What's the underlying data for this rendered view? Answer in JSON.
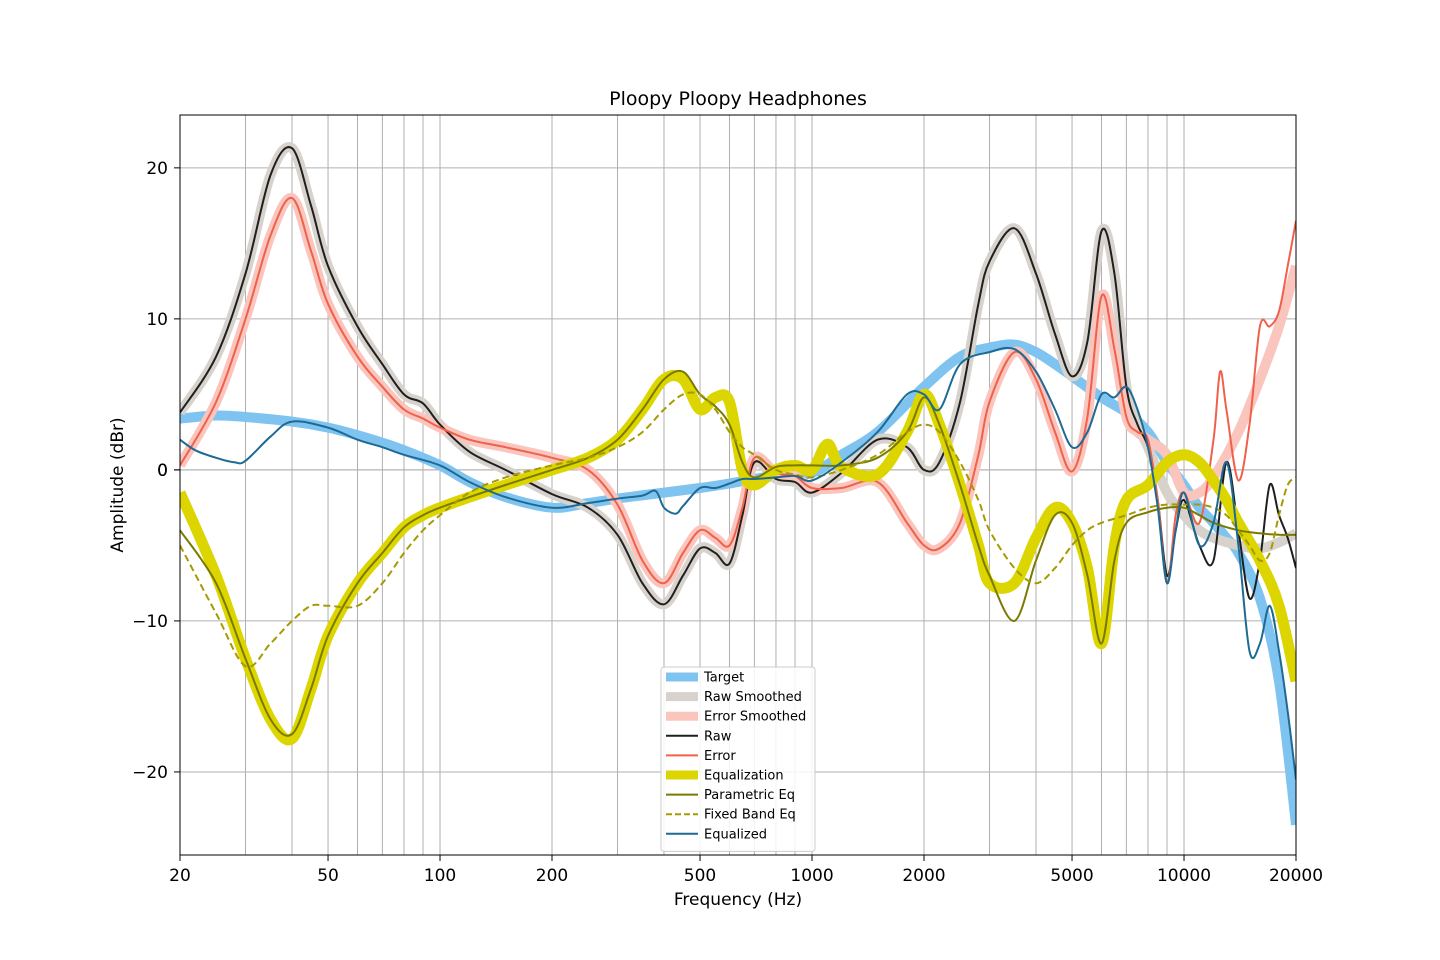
{
  "chart_data": {
    "type": "line",
    "title": "Ploopy Ploopy Headphones",
    "xlabel": "Frequency (Hz)",
    "ylabel": "Amplitude (dBr)",
    "x_scale": "log",
    "xlim": [
      20,
      20000
    ],
    "ylim": [
      -25.5,
      23.5
    ],
    "grid": true,
    "legend_position": "lower center",
    "x_tick_labels": [
      "20",
      "50",
      "100",
      "200",
      "500",
      "1000",
      "2000",
      "5000",
      "10000",
      "20000"
    ],
    "y_tick_labels": [
      "20",
      "10",
      "0",
      "−10",
      "−20"
    ],
    "series": [
      {
        "name": "Target",
        "color": "#7fc4f0",
        "style": "thick",
        "x": [
          20,
          25,
          30,
          40,
          50,
          60,
          70,
          80,
          100,
          120,
          150,
          200,
          250,
          300,
          400,
          500,
          600,
          700,
          800,
          1000,
          1200,
          1500,
          2000,
          2500,
          3000,
          3500,
          4000,
          4500,
          5000,
          6000,
          7000,
          8000,
          9000,
          10000,
          11000,
          12000,
          13000,
          14000,
          16000,
          18000,
          20000
        ],
        "y": [
          3.4,
          3.6,
          3.5,
          3.2,
          2.8,
          2.3,
          1.8,
          1.3,
          0.3,
          -0.8,
          -1.8,
          -2.5,
          -2.2,
          -1.9,
          -1.5,
          -1.2,
          -0.9,
          -0.6,
          -0.4,
          -0.2,
          1.0,
          2.5,
          5.5,
          7.5,
          8.1,
          8.3,
          7.8,
          7.0,
          6.2,
          4.8,
          3.8,
          2.5,
          0.5,
          -1.0,
          -2.5,
          -3.5,
          -4.5,
          -5.5,
          -8.5,
          -14.0,
          -23.5
        ]
      },
      {
        "name": "Raw Smoothed",
        "color": "#d7d2cc",
        "style": "thick",
        "x": [
          20,
          25,
          30,
          35,
          40,
          45,
          50,
          60,
          70,
          80,
          90,
          100,
          120,
          150,
          200,
          250,
          300,
          350,
          400,
          450,
          500,
          550,
          600,
          650,
          700,
          800,
          900,
          1000,
          1200,
          1500,
          1800,
          2000,
          2200,
          2500,
          2800,
          3000,
          3500,
          4000,
          4500,
          5000,
          5500,
          6000,
          6500,
          7000,
          7500,
          8000,
          9000,
          10000,
          11000,
          12000,
          14000,
          16000,
          18000,
          20000
        ],
        "y": [
          3.8,
          7.5,
          13.0,
          19.5,
          21.3,
          17.5,
          13.5,
          9.5,
          7.0,
          5.0,
          4.4,
          3.0,
          1.2,
          0.0,
          -1.6,
          -2.5,
          -4.3,
          -7.5,
          -8.9,
          -7.0,
          -5.2,
          -5.5,
          -6.2,
          -3.0,
          0.5,
          -0.6,
          -0.8,
          -1.5,
          -0.2,
          2.0,
          1.5,
          0.0,
          0.5,
          4.5,
          11.0,
          13.8,
          16.0,
          13.0,
          9.0,
          6.2,
          8.5,
          15.8,
          13.0,
          5.5,
          3.0,
          1.5,
          -1.5,
          -3.0,
          -4.0,
          -4.5,
          -5.0,
          -5.2,
          -4.8,
          -4.2
        ]
      },
      {
        "name": "Error Smoothed",
        "color": "#f9c5bd",
        "style": "thick",
        "x": [
          20,
          25,
          30,
          35,
          40,
          45,
          50,
          60,
          70,
          80,
          90,
          100,
          120,
          150,
          200,
          250,
          300,
          350,
          400,
          450,
          500,
          550,
          600,
          650,
          700,
          800,
          900,
          1000,
          1200,
          1500,
          1800,
          2000,
          2200,
          2500,
          2800,
          3000,
          3500,
          4000,
          4500,
          5000,
          5500,
          6000,
          6500,
          7000,
          7500,
          8000,
          9000,
          10000,
          11000,
          12000,
          14000,
          16000,
          18000,
          20000
        ],
        "y": [
          0.3,
          4.5,
          10.0,
          15.5,
          18.0,
          14.5,
          11.0,
          7.5,
          5.5,
          4.0,
          3.4,
          2.8,
          2.0,
          1.5,
          0.8,
          0.0,
          -2.3,
          -6.0,
          -7.5,
          -5.5,
          -4.0,
          -4.5,
          -5.0,
          -2.5,
          0.8,
          -0.2,
          -0.4,
          -1.2,
          -1.2,
          -0.8,
          -3.5,
          -5.0,
          -5.2,
          -3.5,
          1.0,
          4.5,
          7.8,
          6.0,
          2.5,
          -0.1,
          3.5,
          11.5,
          8.0,
          3.5,
          2.5,
          2.0,
          1.0,
          -1.5,
          -1.5,
          -0.5,
          2.5,
          6.0,
          9.5,
          13.5
        ]
      },
      {
        "name": "Raw",
        "color": "#1f1f1f",
        "style": "thin",
        "x": [
          20,
          25,
          30,
          35,
          40,
          45,
          50,
          60,
          70,
          80,
          90,
          100,
          120,
          150,
          200,
          250,
          300,
          350,
          400,
          450,
          500,
          550,
          600,
          650,
          700,
          800,
          900,
          1000,
          1200,
          1500,
          1800,
          2000,
          2200,
          2500,
          2800,
          3000,
          3500,
          4000,
          4500,
          5000,
          5500,
          6000,
          6500,
          7000,
          7500,
          8000,
          8500,
          9000,
          9500,
          10000,
          11000,
          12000,
          13000,
          14000,
          15000,
          16000,
          17000,
          18000,
          19000,
          20000
        ],
        "y": [
          3.8,
          7.5,
          13.0,
          19.5,
          21.3,
          17.5,
          13.5,
          9.5,
          7.0,
          5.0,
          4.4,
          3.0,
          1.2,
          0.0,
          -1.6,
          -2.5,
          -4.3,
          -7.5,
          -8.9,
          -7.0,
          -5.2,
          -5.5,
          -6.2,
          -3.0,
          0.5,
          -0.6,
          -0.8,
          -1.5,
          -0.2,
          2.0,
          1.5,
          0.0,
          0.5,
          4.5,
          11.0,
          13.8,
          16.0,
          13.0,
          9.0,
          6.2,
          8.5,
          15.8,
          13.0,
          5.5,
          3.0,
          1.5,
          -2.0,
          -7.0,
          -4.0,
          -2.0,
          -5.0,
          -6.0,
          0.5,
          -4.0,
          -8.5,
          -6.0,
          -1.0,
          -3.0,
          -4.5,
          -6.5
        ]
      },
      {
        "name": "Error",
        "color": "#f0604a",
        "style": "thin",
        "x": [
          20,
          25,
          30,
          35,
          40,
          45,
          50,
          60,
          70,
          80,
          90,
          100,
          120,
          150,
          200,
          250,
          300,
          350,
          400,
          450,
          500,
          550,
          600,
          650,
          700,
          800,
          900,
          1000,
          1200,
          1500,
          1800,
          2000,
          2200,
          2500,
          2800,
          3000,
          3500,
          4000,
          4500,
          5000,
          5500,
          6000,
          6500,
          7000,
          7500,
          8000,
          8500,
          9000,
          9500,
          10000,
          11000,
          12000,
          12500,
          13000,
          14000,
          15000,
          16000,
          17000,
          18000,
          19000,
          20000
        ],
        "y": [
          0.3,
          4.5,
          10.0,
          15.5,
          18.0,
          14.5,
          11.0,
          7.5,
          5.5,
          4.0,
          3.4,
          2.8,
          2.0,
          1.5,
          0.8,
          0.0,
          -2.3,
          -6.0,
          -7.5,
          -5.5,
          -4.0,
          -4.5,
          -5.0,
          -2.5,
          0.8,
          -0.2,
          -0.4,
          -1.2,
          -1.2,
          -0.8,
          -3.5,
          -5.0,
          -5.2,
          -3.5,
          1.0,
          4.5,
          7.8,
          6.0,
          2.5,
          -0.1,
          3.5,
          11.5,
          8.0,
          3.5,
          2.5,
          2.0,
          -2.0,
          -7.5,
          -3.0,
          -1.5,
          -3.5,
          2.0,
          6.5,
          4.0,
          -0.7,
          3.0,
          9.5,
          9.5,
          10.5,
          13.5,
          16.5
        ]
      },
      {
        "name": "Equalization",
        "color": "#dcd500",
        "style": "thick",
        "x": [
          20,
          25,
          30,
          35,
          40,
          45,
          50,
          60,
          70,
          80,
          90,
          100,
          120,
          150,
          200,
          250,
          300,
          350,
          400,
          450,
          500,
          550,
          600,
          650,
          700,
          800,
          900,
          1000,
          1100,
          1200,
          1500,
          1800,
          2000,
          2200,
          2500,
          2800,
          3000,
          3500,
          4000,
          4500,
          5000,
          5500,
          6000,
          6500,
          7000,
          8000,
          9000,
          10000,
          11000,
          12000,
          13000,
          14000,
          16000,
          18000,
          20000
        ],
        "y": [
          -1.5,
          -7.0,
          -12.5,
          -16.5,
          -17.8,
          -14.5,
          -11.0,
          -7.5,
          -5.5,
          -3.8,
          -3.0,
          -2.5,
          -1.8,
          -1.0,
          0.0,
          0.8,
          2.0,
          4.0,
          6.0,
          6.0,
          4.0,
          4.8,
          4.5,
          0.0,
          -1.0,
          0.0,
          0.3,
          0.0,
          1.7,
          0.2,
          -0.3,
          2.5,
          5.0,
          3.0,
          -1.0,
          -5.0,
          -7.5,
          -7.5,
          -4.5,
          -2.5,
          -3.5,
          -6.5,
          -11.5,
          -5.0,
          -2.0,
          -1.0,
          0.5,
          1.0,
          0.5,
          -0.7,
          -2.0,
          -3.5,
          -6.0,
          -9.0,
          -14.0
        ]
      },
      {
        "name": "Parametric Eq",
        "color": "#7a7a00",
        "style": "thin",
        "x": [
          20,
          25,
          30,
          35,
          40,
          45,
          50,
          60,
          70,
          80,
          90,
          100,
          120,
          150,
          200,
          250,
          300,
          350,
          400,
          450,
          500,
          550,
          600,
          650,
          700,
          800,
          900,
          1000,
          1200,
          1500,
          1800,
          2000,
          2200,
          2500,
          2800,
          3000,
          3500,
          4000,
          4500,
          5000,
          5500,
          6000,
          6500,
          7000,
          8000,
          9000,
          10000,
          11000,
          12000,
          14000,
          16000,
          18000,
          20000
        ],
        "y": [
          -4.0,
          -7.5,
          -12.5,
          -16.5,
          -17.5,
          -14.5,
          -11.0,
          -7.5,
          -5.5,
          -3.8,
          -3.0,
          -2.5,
          -1.8,
          -1.0,
          0.0,
          0.8,
          2.0,
          4.0,
          6.0,
          6.5,
          5.0,
          4.2,
          3.0,
          0.5,
          -0.5,
          0.2,
          0.3,
          0.3,
          0.3,
          0.8,
          2.5,
          4.8,
          3.0,
          -1.0,
          -5.0,
          -7.0,
          -10.0,
          -6.0,
          -3.0,
          -3.5,
          -7.0,
          -11.5,
          -6.0,
          -3.5,
          -2.8,
          -2.5,
          -2.5,
          -3.0,
          -3.5,
          -4.0,
          -4.2,
          -4.3,
          -4.3
        ]
      },
      {
        "name": "Fixed Band Eq",
        "color": "#a69a00",
        "style": "dashed",
        "x": [
          20,
          25,
          30,
          35,
          40,
          45,
          50,
          60,
          70,
          80,
          90,
          100,
          120,
          150,
          200,
          250,
          300,
          350,
          400,
          450,
          500,
          550,
          600,
          650,
          700,
          800,
          900,
          1000,
          1200,
          1500,
          1800,
          2000,
          2200,
          2500,
          2800,
          3000,
          3500,
          4000,
          4500,
          5000,
          5500,
          6000,
          7000,
          8000,
          9000,
          10000,
          11000,
          12000,
          13000,
          14000,
          15000,
          16000,
          17000,
          18000,
          19000,
          20000
        ],
        "y": [
          -5.0,
          -9.5,
          -13.0,
          -11.5,
          -10.0,
          -9.0,
          -9.0,
          -9.0,
          -7.5,
          -5.5,
          -4.0,
          -3.0,
          -1.5,
          -0.5,
          0.3,
          0.8,
          1.5,
          2.5,
          4.0,
          5.0,
          5.0,
          4.0,
          2.5,
          1.5,
          1.0,
          0.0,
          -0.3,
          -0.5,
          0.0,
          1.0,
          2.5,
          3.0,
          2.5,
          0.5,
          -2.0,
          -4.0,
          -6.5,
          -7.5,
          -6.5,
          -5.0,
          -4.0,
          -3.5,
          -3.0,
          -2.5,
          -2.3,
          -2.3,
          -2.3,
          -2.5,
          -3.0,
          -4.0,
          -5.0,
          -6.0,
          -5.5,
          -3.0,
          -1.0,
          -0.5
        ]
      },
      {
        "name": "Equalized",
        "color": "#1d6a94",
        "style": "thin",
        "x": [
          20,
          22,
          25,
          28,
          30,
          35,
          40,
          50,
          60,
          70,
          80,
          100,
          120,
          150,
          200,
          250,
          300,
          350,
          380,
          400,
          430,
          450,
          500,
          550,
          600,
          650,
          700,
          800,
          900,
          1000,
          1200,
          1500,
          1800,
          2000,
          2200,
          2500,
          3000,
          3500,
          4000,
          4500,
          5000,
          5500,
          6000,
          6500,
          7000,
          7500,
          8000,
          8500,
          9000,
          9500,
          10000,
          11000,
          12000,
          13000,
          14000,
          15000,
          16000,
          17000,
          18000,
          19000,
          20000
        ],
        "y": [
          2.0,
          1.3,
          0.8,
          0.5,
          0.6,
          2.2,
          3.2,
          2.8,
          2.0,
          1.5,
          1.0,
          0.3,
          -0.8,
          -1.8,
          -2.5,
          -2.2,
          -1.9,
          -1.7,
          -1.4,
          -2.5,
          -2.9,
          -2.4,
          -1.2,
          -1.2,
          -0.9,
          -0.6,
          -0.6,
          -0.5,
          -0.4,
          -0.7,
          0.5,
          2.5,
          5.0,
          5.0,
          4.0,
          7.0,
          7.8,
          8.0,
          6.5,
          4.0,
          1.5,
          2.5,
          5.0,
          4.8,
          5.5,
          4.0,
          1.5,
          -2.5,
          -7.5,
          -4.0,
          -1.5,
          -5.0,
          -3.5,
          0.5,
          -5.0,
          -12.0,
          -11.5,
          -9.0,
          -12.0,
          -16.0,
          -20.5
        ]
      }
    ]
  }
}
